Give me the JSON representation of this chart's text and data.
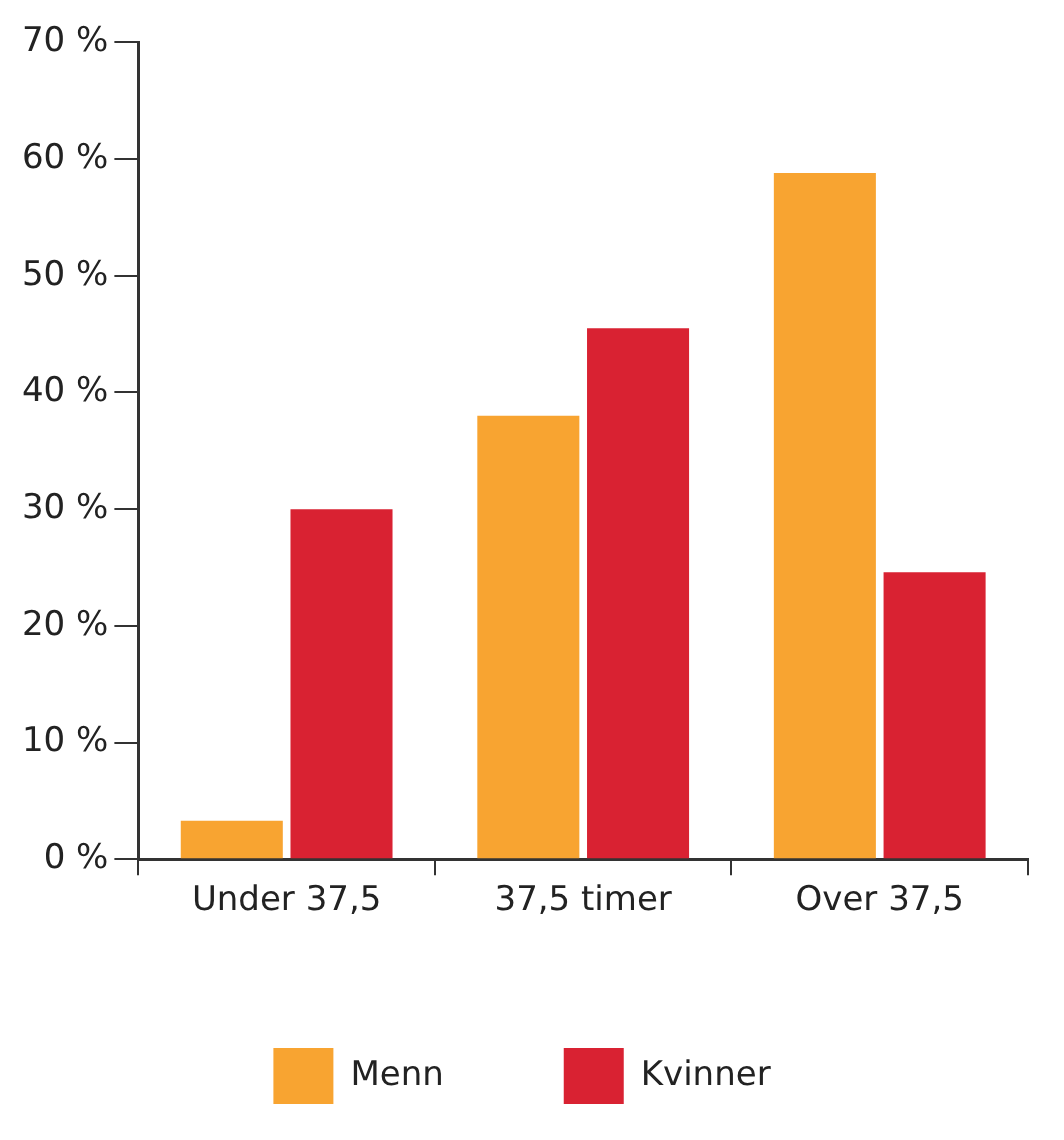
{
  "chart_data": {
    "type": "bar",
    "categories": [
      "Under 37,5",
      "37,5 timer",
      "Over 37,5"
    ],
    "series": [
      {
        "name": "Menn",
        "color": "#f8a431",
        "values": [
          3.3,
          38,
          58.8
        ]
      },
      {
        "name": "Kvinner",
        "color": "#d92232",
        "values": [
          30,
          45.5,
          24.6
        ]
      }
    ],
    "ylim": [
      0,
      70
    ],
    "yticks": [
      {
        "value": 0,
        "label": "0 %"
      },
      {
        "value": 10,
        "label": "10 %"
      },
      {
        "value": 20,
        "label": "20 %"
      },
      {
        "value": 30,
        "label": "30 %"
      },
      {
        "value": 40,
        "label": "40 %"
      },
      {
        "value": 50,
        "label": "50 %"
      },
      {
        "value": 60,
        "label": "60 %"
      },
      {
        "value": 70,
        "label": "70 %"
      }
    ],
    "grid": false,
    "legend": "bottom"
  }
}
